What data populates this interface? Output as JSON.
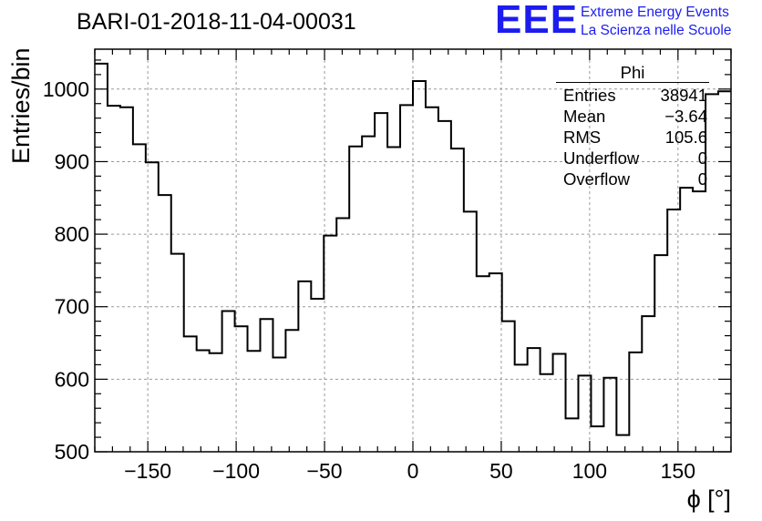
{
  "title": "BARI-01-2018-11-04-00031",
  "logo": {
    "mark": "EEE",
    "line1": "Extreme Energy Events",
    "line2": "La Scienza nelle Scuole",
    "color": "#1c1cf0"
  },
  "stats": {
    "name": "Phi",
    "rows": [
      {
        "label": "Entries",
        "value": "38941"
      },
      {
        "label": "Mean",
        "value": "−3.64"
      },
      {
        "label": "RMS",
        "value": "105.6"
      },
      {
        "label": "Underflow",
        "value": "0"
      },
      {
        "label": "Overflow",
        "value": "0"
      }
    ]
  },
  "chart_data": {
    "type": "histogram",
    "title": "BARI-01-2018-11-04-00031",
    "xlabel": "ϕ [°]",
    "ylabel": "Entries/bin",
    "xlim": [
      -180,
      180
    ],
    "ylim": [
      500,
      1055
    ],
    "bin_width": 7.2,
    "x_ticks": [
      -150,
      -100,
      -50,
      0,
      50,
      100,
      150
    ],
    "x_tick_labels": [
      "−150",
      "−100",
      "−50",
      "0",
      "50",
      "100",
      "150"
    ],
    "y_ticks": [
      500,
      600,
      700,
      800,
      900,
      1000
    ],
    "y_tick_labels": [
      "500",
      "600",
      "700",
      "800",
      "900",
      "1000"
    ],
    "grid": true,
    "values": [
      1035,
      977,
      975,
      924,
      899,
      854,
      773,
      659,
      640,
      636,
      694,
      673,
      639,
      683,
      630,
      668,
      735,
      711,
      798,
      822,
      921,
      935,
      967,
      920,
      978,
      1011,
      975,
      956,
      918,
      831,
      742,
      746,
      680,
      620,
      643,
      607,
      635,
      546,
      605,
      535,
      602,
      523,
      637,
      687,
      771,
      834,
      864,
      859,
      993,
      997
    ],
    "line_color": "#000000"
  }
}
